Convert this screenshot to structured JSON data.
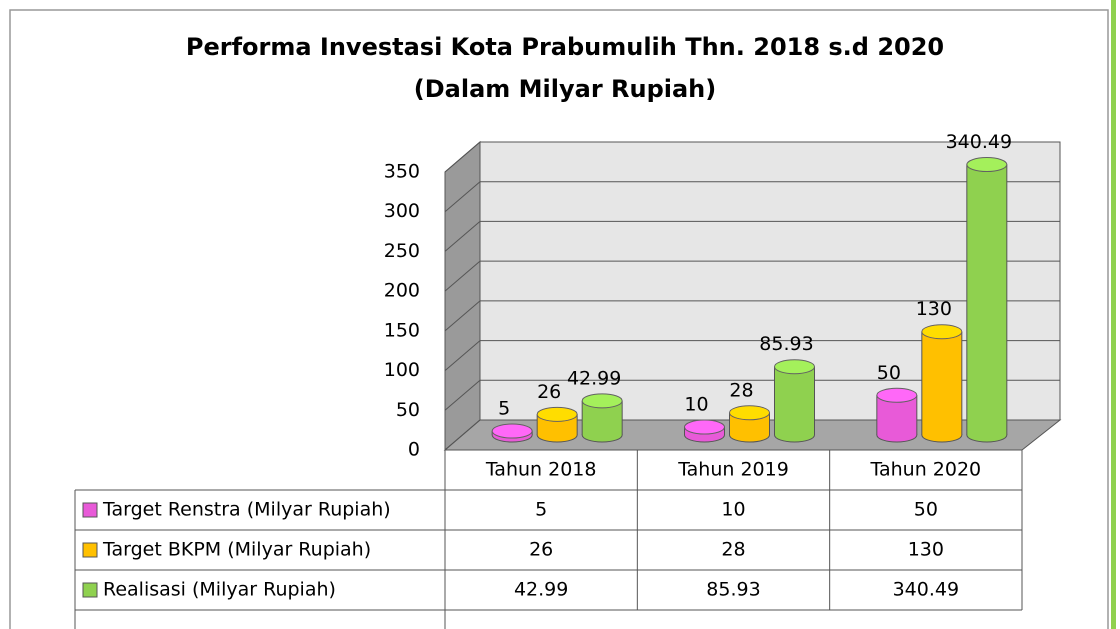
{
  "chart_data": {
    "type": "bar",
    "title": "Performa Investasi Kota Prabumulih Thn. 2018 s.d 2020",
    "subtitle": "(Dalam Milyar Rupiah)",
    "categories": [
      "Tahun 2018",
      "Tahun 2019",
      "Tahun 2020"
    ],
    "series": [
      {
        "name": "Target Renstra (Milyar Rupiah)",
        "color": "#e85ad8",
        "values": [
          5,
          10,
          50
        ]
      },
      {
        "name": "Target BKPM (Milyar Rupiah)",
        "color": "#ffc000",
        "values": [
          26,
          28,
          130
        ]
      },
      {
        "name": "Realisasi (Milyar Rupiah)",
        "color": "#8fd14f",
        "values": [
          42.99,
          85.93,
          340.49
        ]
      }
    ],
    "ylim": [
      0,
      350
    ],
    "yticks": [
      0,
      50,
      100,
      150,
      200,
      250,
      300,
      350
    ],
    "grid": true
  }
}
